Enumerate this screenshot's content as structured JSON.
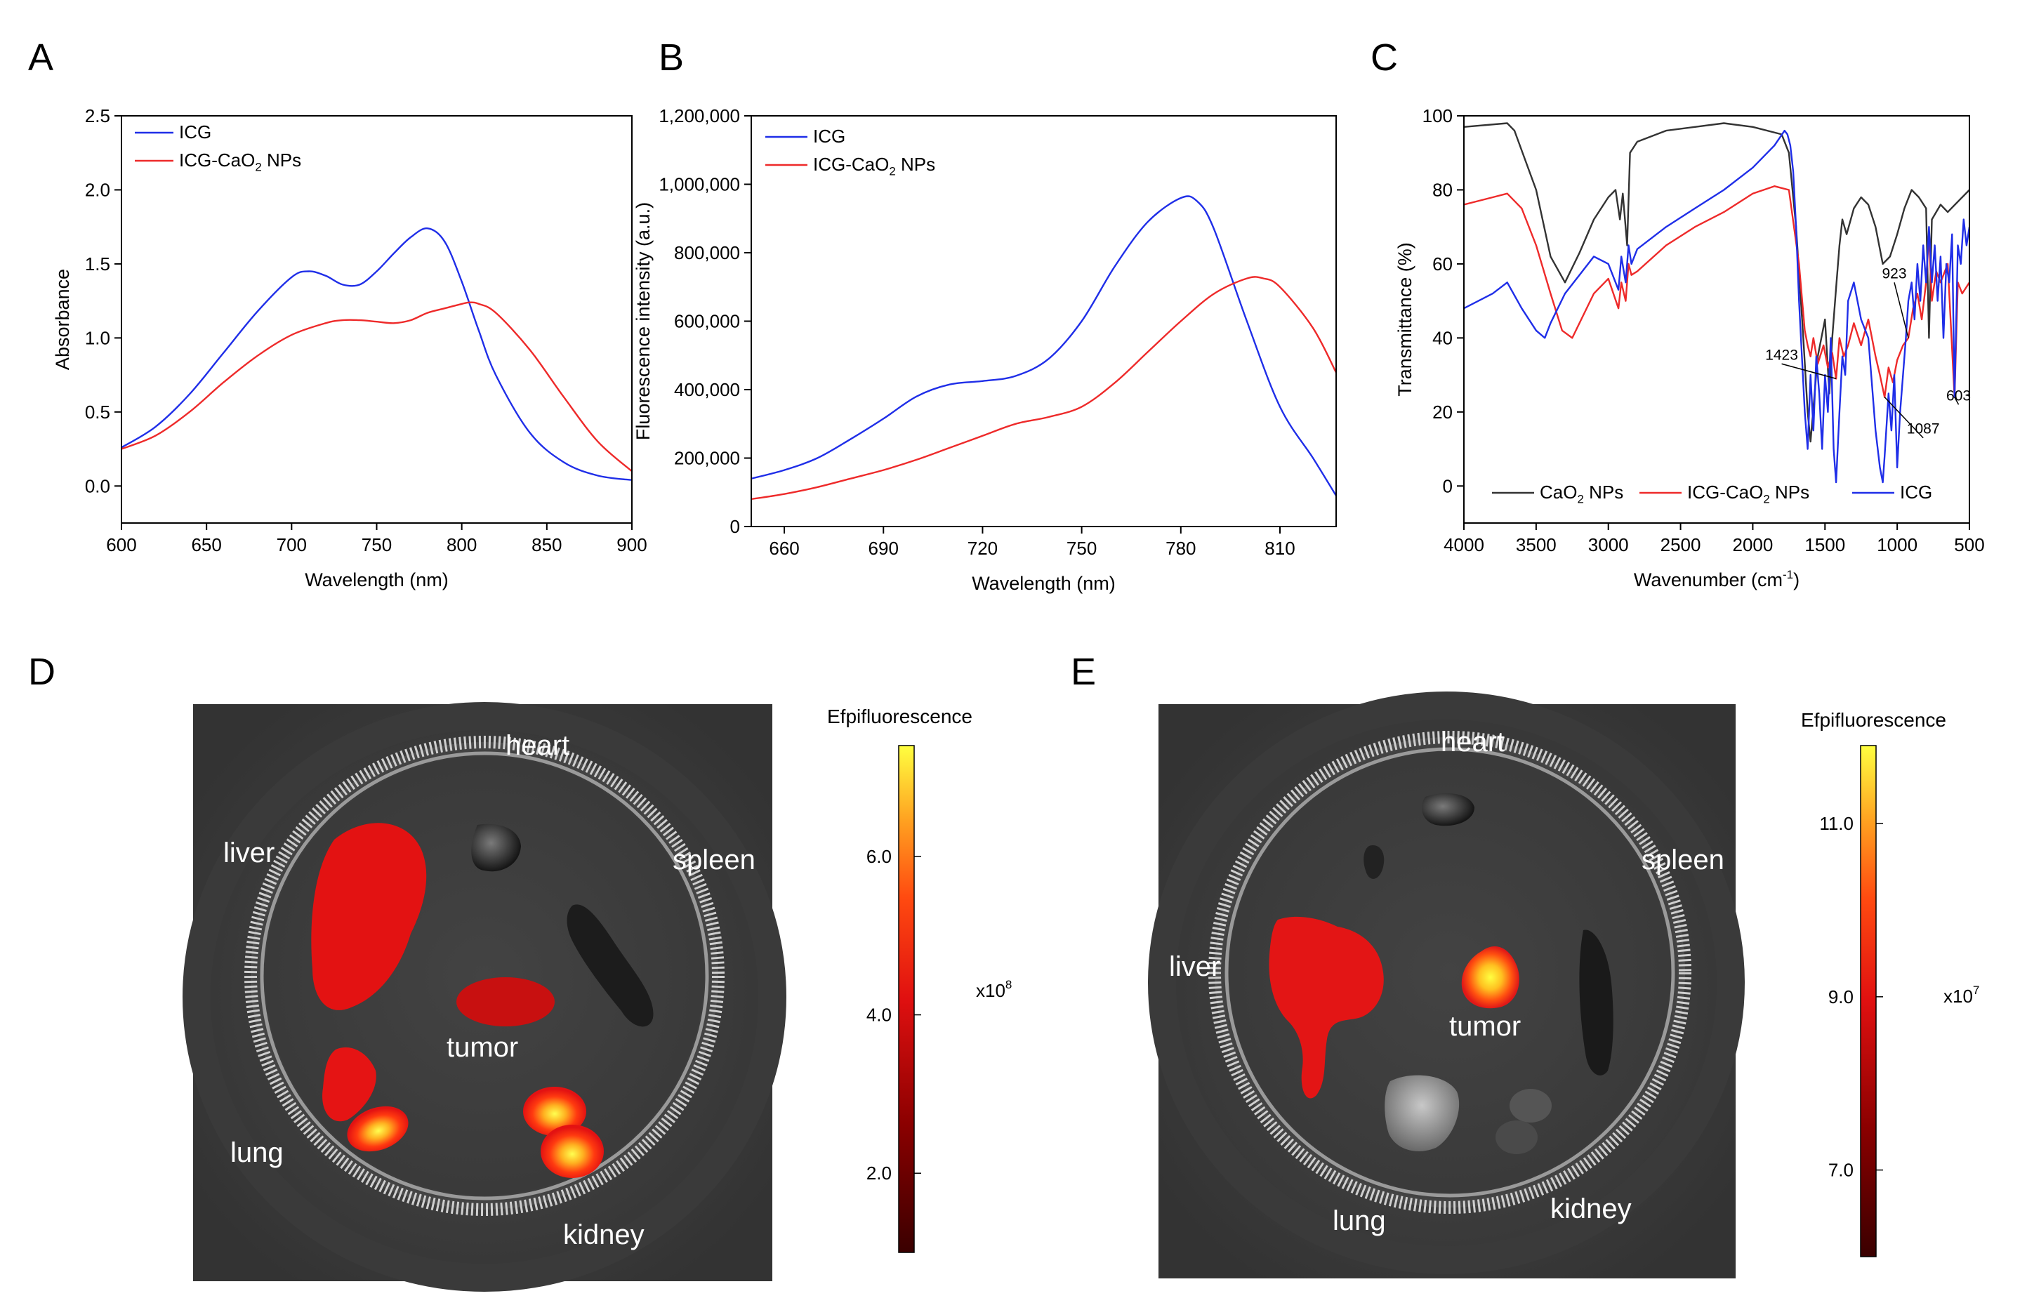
{
  "panel_letters": [
    "A",
    "B",
    "C",
    "D",
    "E"
  ],
  "colors": {
    "icg": "#1f2ee8",
    "icg_cao2": "#ee2a2a",
    "cao2": "#333333",
    "axis": "#000000"
  },
  "chart_data": [
    {
      "panel": "A",
      "type": "line",
      "xlabel": "Wavelength (nm)",
      "ylabel": "Absorbance",
      "xlim": [
        600,
        900
      ],
      "ylim": [
        -0.25,
        2.5
      ],
      "xticks": [
        600,
        650,
        700,
        750,
        800,
        850,
        900
      ],
      "xtick_labels": [
        "600",
        "650",
        "700",
        "750",
        "800",
        "850",
        "900"
      ],
      "yticks": [
        0,
        0.5,
        1.0,
        1.5,
        2.0,
        2.5
      ],
      "ytick_labels": [
        "0.0",
        "0.5",
        "1.0",
        "1.5",
        "2.0",
        "2.5"
      ],
      "legend": [
        {
          "label": "ICG",
          "color": "#1f2ee8"
        },
        {
          "label": "ICG-CaO",
          "sub": "2",
          "label_tail": " NPs",
          "color": "#ee2a2a"
        }
      ],
      "series": [
        {
          "name": "ICG",
          "color": "#1f2ee8",
          "x": [
            600,
            620,
            640,
            660,
            680,
            700,
            710,
            720,
            730,
            740,
            750,
            760,
            770,
            780,
            790,
            800,
            810,
            820,
            840,
            860,
            880,
            900
          ],
          "y": [
            0.26,
            0.4,
            0.62,
            0.9,
            1.18,
            1.41,
            1.45,
            1.42,
            1.36,
            1.36,
            1.45,
            1.57,
            1.68,
            1.74,
            1.65,
            1.38,
            1.05,
            0.75,
            0.36,
            0.16,
            0.07,
            0.04
          ]
        },
        {
          "name": "ICG-CaO2 NPs",
          "color": "#ee2a2a",
          "x": [
            600,
            620,
            640,
            660,
            680,
            700,
            720,
            730,
            740,
            750,
            760,
            770,
            780,
            790,
            800,
            805,
            810,
            820,
            840,
            860,
            880,
            900
          ],
          "y": [
            0.25,
            0.34,
            0.5,
            0.7,
            0.88,
            1.02,
            1.1,
            1.12,
            1.12,
            1.11,
            1.1,
            1.12,
            1.17,
            1.2,
            1.23,
            1.24,
            1.23,
            1.17,
            0.92,
            0.6,
            0.3,
            0.1
          ]
        }
      ]
    },
    {
      "panel": "B",
      "type": "line",
      "xlabel": "Wavelength (nm)",
      "ylabel": "Fluorescence intensity (a.u.)",
      "xlim": [
        650,
        827
      ],
      "ylim": [
        0,
        1200000
      ],
      "xticks": [
        660,
        690,
        720,
        750,
        780,
        810
      ],
      "xtick_labels": [
        "660",
        "690",
        "720",
        "750",
        "780",
        "810"
      ],
      "yticks": [
        0,
        200000,
        400000,
        600000,
        800000,
        1000000,
        1200000
      ],
      "ytick_labels": [
        "0",
        "200,000",
        "400,000",
        "600,000",
        "800,000",
        "1,000,000",
        "1,200,000"
      ],
      "legend": [
        {
          "label": "ICG",
          "color": "#1f2ee8"
        },
        {
          "label": "ICG-CaO",
          "sub": "2",
          "label_tail": " NPs",
          "color": "#ee2a2a"
        }
      ],
      "series": [
        {
          "name": "ICG",
          "color": "#1f2ee8",
          "x": [
            650,
            660,
            670,
            680,
            690,
            700,
            710,
            720,
            730,
            740,
            750,
            760,
            770,
            780,
            785,
            790,
            800,
            810,
            820,
            827
          ],
          "y": [
            140000,
            165000,
            200000,
            255000,
            315000,
            380000,
            415000,
            425000,
            440000,
            490000,
            600000,
            760000,
            890000,
            960000,
            950000,
            870000,
            600000,
            350000,
            200000,
            90000
          ]
        },
        {
          "name": "ICG-CaO2 NPs",
          "color": "#ee2a2a",
          "x": [
            650,
            660,
            670,
            680,
            690,
            700,
            710,
            720,
            730,
            740,
            750,
            760,
            770,
            780,
            790,
            800,
            805,
            810,
            820,
            827
          ],
          "y": [
            80000,
            95000,
            115000,
            140000,
            165000,
            195000,
            230000,
            265000,
            300000,
            320000,
            350000,
            420000,
            510000,
            600000,
            680000,
            725000,
            725000,
            700000,
            580000,
            450000
          ]
        }
      ]
    },
    {
      "panel": "C",
      "type": "line",
      "xlabel": "Wavenumber (cm",
      "xlabel_sup": "-1",
      "xlabel_tail": ")",
      "ylabel": "Transmittance (%)",
      "xlim": [
        4000,
        500
      ],
      "ylim": [
        -10,
        100
      ],
      "xticks": [
        4000,
        3500,
        3000,
        2500,
        2000,
        1500,
        1000,
        500
      ],
      "xtick_labels": [
        "4000",
        "3500",
        "3000",
        "2500",
        "2000",
        "1500",
        "1000",
        "500"
      ],
      "yticks": [
        0,
        20,
        40,
        60,
        80,
        100
      ],
      "ytick_labels": [
        "0",
        "20",
        "40",
        "60",
        "80",
        "100"
      ],
      "legend": [
        {
          "label": "CaO",
          "sub": "2",
          "label_tail": " NPs",
          "color": "#333333"
        },
        {
          "label": "ICG-CaO",
          "sub": "2",
          "label_tail": " NPs",
          "color": "#ee2a2a"
        },
        {
          "label": "ICG",
          "color": "#1f2ee8"
        }
      ],
      "annotations": [
        {
          "text": "923",
          "x": 923,
          "y": 40,
          "label_x": 1020,
          "label_y": 55
        },
        {
          "text": "1423",
          "x": 1423,
          "y": 29,
          "label_x": 1800,
          "label_y": 33
        },
        {
          "text": "603",
          "x": 603,
          "y": 24,
          "label_x": 575,
          "label_y": 22
        },
        {
          "text": "1087",
          "x": 1087,
          "y": 24,
          "label_x": 820,
          "label_y": 13
        }
      ],
      "series": [
        {
          "name": "CaO2 NPs",
          "color": "#333333",
          "x": [
            4000,
            3700,
            3650,
            3500,
            3400,
            3300,
            3200,
            3100,
            3000,
            2950,
            2920,
            2900,
            2870,
            2850,
            2800,
            2600,
            2400,
            2200,
            2000,
            1800,
            1750,
            1700,
            1650,
            1620,
            1600,
            1550,
            1500,
            1470,
            1450,
            1420,
            1400,
            1380,
            1350,
            1300,
            1250,
            1200,
            1150,
            1100,
            1050,
            1000,
            950,
            900,
            850,
            800,
            780,
            760,
            700,
            650,
            600,
            550,
            500
          ],
          "y": [
            97,
            98,
            96,
            80,
            62,
            55,
            63,
            72,
            78,
            80,
            72,
            79,
            65,
            90,
            93,
            96,
            97,
            98,
            97,
            95,
            90,
            70,
            40,
            20,
            12,
            35,
            45,
            25,
            40,
            55,
            65,
            72,
            68,
            75,
            78,
            76,
            70,
            60,
            62,
            68,
            75,
            80,
            78,
            75,
            40,
            72,
            76,
            74,
            76,
            78,
            80
          ]
        },
        {
          "name": "ICG-CaO2 NPs",
          "color": "#ee2a2a",
          "x": [
            4000,
            3800,
            3700,
            3600,
            3500,
            3400,
            3320,
            3250,
            3100,
            3000,
            2930,
            2910,
            2880,
            2860,
            2840,
            2800,
            2600,
            2400,
            2200,
            2000,
            1850,
            1750,
            1680,
            1640,
            1620,
            1600,
            1580,
            1550,
            1510,
            1480,
            1450,
            1423,
            1400,
            1370,
            1340,
            1300,
            1250,
            1200,
            1150,
            1120,
            1087,
            1060,
            1030,
            1000,
            960,
            923,
            890,
            860,
            830,
            800,
            780,
            760,
            730,
            700,
            650,
            603,
            580,
            550,
            500
          ],
          "y": [
            76,
            78,
            79,
            75,
            65,
            52,
            42,
            40,
            52,
            56,
            48,
            55,
            50,
            60,
            57,
            58,
            65,
            70,
            74,
            79,
            81,
            80,
            60,
            42,
            38,
            35,
            40,
            33,
            38,
            32,
            36,
            29,
            40,
            35,
            38,
            44,
            38,
            45,
            35,
            30,
            24,
            32,
            28,
            34,
            38,
            40,
            48,
            52,
            45,
            55,
            68,
            50,
            58,
            55,
            60,
            24,
            55,
            52,
            55
          ]
        },
        {
          "name": "ICG",
          "color": "#1f2ee8",
          "x": [
            4000,
            3800,
            3700,
            3600,
            3500,
            3440,
            3400,
            3300,
            3200,
            3100,
            3000,
            2930,
            2910,
            2880,
            2860,
            2840,
            2800,
            2600,
            2400,
            2200,
            2000,
            1850,
            1780,
            1760,
            1740,
            1720,
            1700,
            1680,
            1660,
            1640,
            1620,
            1600,
            1580,
            1560,
            1540,
            1520,
            1500,
            1480,
            1460,
            1440,
            1423,
            1400,
            1380,
            1360,
            1340,
            1300,
            1250,
            1200,
            1150,
            1120,
            1100,
            1087,
            1060,
            1040,
            1020,
            1000,
            980,
            960,
            940,
            923,
            900,
            880,
            860,
            840,
            820,
            800,
            780,
            760,
            740,
            720,
            700,
            680,
            660,
            640,
            620,
            603,
            580,
            560,
            540,
            520,
            500
          ],
          "y": [
            48,
            52,
            55,
            48,
            42,
            40,
            44,
            52,
            57,
            62,
            60,
            53,
            62,
            55,
            65,
            60,
            64,
            70,
            75,
            80,
            86,
            92,
            96,
            95,
            92,
            85,
            70,
            50,
            35,
            20,
            10,
            30,
            15,
            35,
            25,
            10,
            30,
            20,
            40,
            10,
            1,
            20,
            35,
            30,
            50,
            55,
            45,
            40,
            15,
            5,
            1,
            8,
            25,
            15,
            30,
            5,
            20,
            30,
            40,
            50,
            55,
            45,
            60,
            50,
            65,
            55,
            70,
            55,
            65,
            50,
            62,
            40,
            60,
            55,
            68,
            24,
            65,
            60,
            72,
            65,
            70
          ]
        }
      ]
    }
  ],
  "panel_D": {
    "organ_labels": [
      "heart",
      "liver",
      "spleen",
      "tumor",
      "lung",
      "kidney"
    ],
    "colorbar": {
      "title": "Efpifluorescence",
      "ticks": [
        "6.0",
        "4.0",
        "2.0"
      ],
      "ticks_values": [
        6.0,
        4.0,
        2.0
      ],
      "min": 1.0,
      "max": 7.4,
      "multiplier": "x10",
      "multiplier_exp": "8"
    }
  },
  "panel_E": {
    "organ_labels": [
      "heart",
      "spleen",
      "liver",
      "tumor",
      "lung",
      "kidney"
    ],
    "colorbar": {
      "title": "Efpifluorescence",
      "ticks": [
        "11.0",
        "9.0",
        "7.0"
      ],
      "ticks_values": [
        11.0,
        9.0,
        7.0
      ],
      "min": 6.0,
      "max": 11.9,
      "multiplier": "x10",
      "multiplier_exp": "7"
    }
  }
}
